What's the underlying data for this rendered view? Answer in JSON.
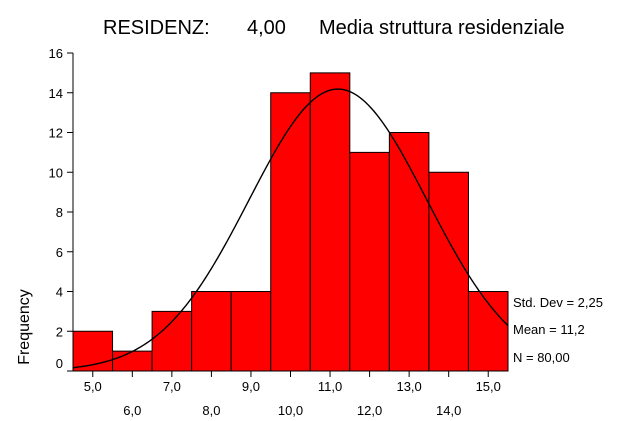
{
  "chart_data": {
    "type": "bar",
    "title": {
      "variable": "RESIDENZ:",
      "value": "4,00",
      "description": "Media struttura residenziale"
    },
    "ylabel": "Frequency",
    "xlabel": "",
    "bin_centers": [
      5.0,
      6.0,
      7.0,
      8.0,
      9.0,
      10.0,
      11.0,
      12.0,
      13.0,
      14.0,
      15.0
    ],
    "bin_width": 1.0,
    "values": [
      2,
      1,
      3,
      4,
      4,
      14,
      15,
      11,
      12,
      10,
      4
    ],
    "x_ticks_upper": [
      "5,0",
      "7,0",
      "9,0",
      "11,0",
      "13,0",
      "15,0"
    ],
    "x_ticks_lower": [
      "6,0",
      "8,0",
      "10,0",
      "12,0",
      "14,0"
    ],
    "xlim": [
      4.5,
      15.5
    ],
    "ylim": [
      0,
      16
    ],
    "y_ticks": [
      0,
      2,
      4,
      6,
      8,
      10,
      12,
      14,
      16
    ],
    "normal_curve": {
      "mean": 11.2,
      "std": 2.25,
      "n": 80
    },
    "stats": {
      "std_dev": "Std. Dev = 2,25",
      "mean": "Mean = 11,2",
      "n": "N = 80,00"
    },
    "colors": {
      "bar_fill": "#ff0000",
      "bar_stroke": "#000000",
      "curve": "#000000"
    },
    "grid": false
  }
}
